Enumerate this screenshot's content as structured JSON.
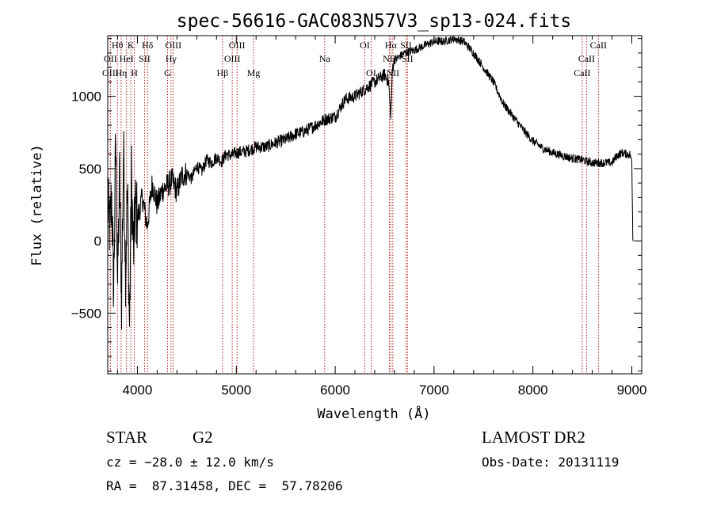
{
  "chart_data": {
    "type": "line",
    "title": "spec-56616-GAC083N57V3_sp13-024.fits",
    "xlabel": "Wavelength (Å)",
    "ylabel": "Flux (relative)",
    "xlim": [
      3700,
      9100
    ],
    "ylim": [
      -920,
      1420
    ],
    "x_ticks": [
      4000,
      5000,
      6000,
      7000,
      8000,
      9000
    ],
    "x_tick_labels": [
      "4000",
      "5000",
      "6000",
      "7000",
      "8000",
      "9000"
    ],
    "y_ticks": [
      -500,
      0,
      500,
      1000
    ],
    "y_tick_labels": [
      "−500",
      "0",
      "500",
      "1000"
    ],
    "grid": false,
    "series_color": "#000000",
    "line_marker_color": "#b22222",
    "series": [
      {
        "x": [
          3700,
          3720,
          3740,
          3760,
          3780,
          3800,
          3820,
          3840,
          3860,
          3880,
          3900,
          3920,
          3940,
          3960,
          3980,
          4000,
          4050,
          4100,
          4150,
          4200,
          4250,
          4300,
          4350,
          4400,
          4450,
          4500,
          4550,
          4600,
          4650,
          4700,
          4750,
          4800,
          4850,
          4900,
          4950,
          5000,
          5100,
          5200,
          5300,
          5400,
          5500,
          5600,
          5700,
          5800,
          5900,
          6000,
          6100,
          6200,
          6300,
          6400,
          6500,
          6540,
          6563,
          6580,
          6600,
          6700,
          6800,
          6900,
          7000,
          7100,
          7200,
          7300,
          7400,
          7500,
          7600,
          7700,
          7800,
          7900,
          8000,
          8100,
          8200,
          8300,
          8400,
          8500,
          8600,
          8700,
          8800,
          8850,
          8900,
          8950,
          8980,
          9000,
          9010
        ],
        "y": [
          250,
          80,
          300,
          -350,
          700,
          -300,
          450,
          -400,
          650,
          -200,
          350,
          -600,
          450,
          -100,
          250,
          150,
          300,
          100,
          400,
          250,
          350,
          380,
          420,
          340,
          450,
          470,
          430,
          520,
          480,
          560,
          540,
          580,
          550,
          600,
          590,
          610,
          620,
          650,
          650,
          680,
          700,
          740,
          760,
          800,
          840,
          860,
          980,
          1000,
          1050,
          1100,
          1150,
          1100,
          850,
          1200,
          1250,
          1300,
          1320,
          1350,
          1380,
          1380,
          1400,
          1380,
          1300,
          1200,
          1100,
          950,
          860,
          770,
          690,
          640,
          610,
          590,
          570,
          560,
          540,
          540,
          540,
          590,
          610,
          600,
          600,
          560,
          0
        ]
      }
    ],
    "spectral_lines": [
      {
        "label": "Hθ",
        "wavelength": 3798,
        "row": 1
      },
      {
        "label": "OII",
        "wavelength": 3727,
        "row": 2
      },
      {
        "label": "OIII",
        "wavelength": 3727,
        "row": 3
      },
      {
        "label": "K",
        "wavelength": 3934,
        "row": 1
      },
      {
        "label": "HeI",
        "wavelength": 3889,
        "row": 2
      },
      {
        "label": "Hη",
        "wavelength": 3835,
        "row": 3
      },
      {
        "label": "Hδ",
        "wavelength": 4102,
        "row": 1
      },
      {
        "label": "SII",
        "wavelength": 4072,
        "row": 2
      },
      {
        "label": "H",
        "wavelength": 3969,
        "row": 3
      },
      {
        "label": "OIII",
        "wavelength": 4363,
        "row": 1
      },
      {
        "label": "Hγ",
        "wavelength": 4340,
        "row": 2
      },
      {
        "label": "G",
        "wavelength": 4305,
        "row": 3
      },
      {
        "label": "OIII",
        "wavelength": 5007,
        "row": 1
      },
      {
        "label": "OIII",
        "wavelength": 4959,
        "row": 2
      },
      {
        "label": "Hβ",
        "wavelength": 4861,
        "row": 3
      },
      {
        "label": "Mg",
        "wavelength": 5175,
        "row": 3
      },
      {
        "label": "Na",
        "wavelength": 5894,
        "row": 2
      },
      {
        "label": "OI",
        "wavelength": 6300,
        "row": 1
      },
      {
        "label": "OI",
        "wavelength": 6364,
        "row": 3
      },
      {
        "label": "Hα",
        "wavelength": 6563,
        "row": 1
      },
      {
        "label": "SII",
        "wavelength": 6716,
        "row": 1
      },
      {
        "label": "NII",
        "wavelength": 6548,
        "row": 2
      },
      {
        "label": "SII",
        "wavelength": 6731,
        "row": 2
      },
      {
        "label": "NII",
        "wavelength": 6583,
        "row": 3
      },
      {
        "label": "CaII",
        "wavelength": 8662,
        "row": 1
      },
      {
        "label": "CaII",
        "wavelength": 8542,
        "row": 2
      },
      {
        "label": "CaII",
        "wavelength": 8498,
        "row": 3
      }
    ]
  },
  "info": {
    "object_class": "STAR",
    "subclass": "G2",
    "cz": "cz = −28.0 ± 12.0 km/s",
    "coords": "RA =  87.31458, DEC =  57.78206",
    "survey": "LAMOST DR2",
    "obs_date": "Obs-Date: 20131119"
  }
}
